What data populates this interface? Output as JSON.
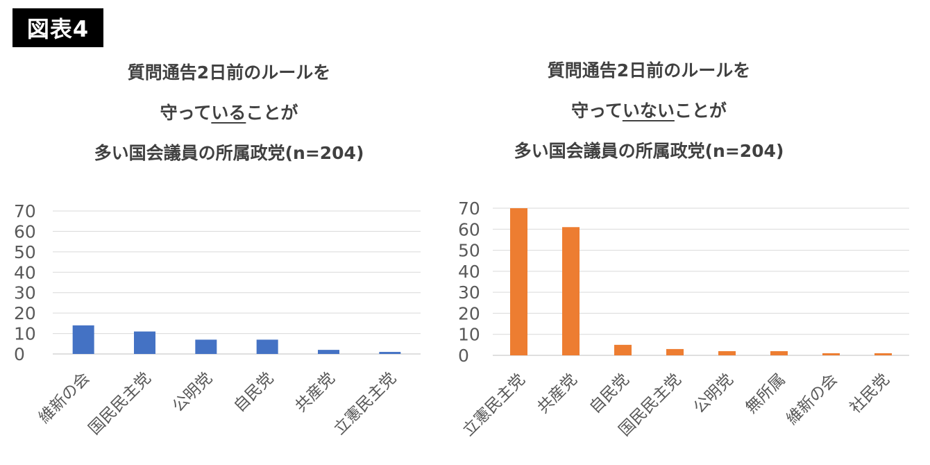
{
  "figure_label": "図表4",
  "chart_data": [
    {
      "type": "bar",
      "title_lines": [
        "質問通告2日前のルールを",
        [
          "守って",
          "いる",
          "ことが"
        ],
        "多い国会議員の所属政党(n=204)"
      ],
      "categories": [
        "維新の会",
        "国民民主党",
        "公明党",
        "自民党",
        "共産党",
        "立憲民主党"
      ],
      "values": [
        14,
        11,
        7,
        7,
        2,
        1
      ],
      "yticks": [
        0,
        10,
        20,
        30,
        40,
        50,
        60,
        70
      ],
      "ylim": [
        0,
        70
      ],
      "color": "#4472C4",
      "grid": true
    },
    {
      "type": "bar",
      "title_lines": [
        "質問通告2日前のルールを",
        [
          "守って",
          "いない",
          "ことが"
        ],
        "多い国会議員の所属政党(n=204)"
      ],
      "categories": [
        "立憲民主党",
        "共産党",
        "自民党",
        "国民民主党",
        "公明党",
        "無所属",
        "維新の会",
        "社民党"
      ],
      "values": [
        70,
        61,
        5,
        3,
        2,
        2,
        1,
        1
      ],
      "yticks": [
        0,
        10,
        20,
        30,
        40,
        50,
        60,
        70
      ],
      "ylim": [
        0,
        70
      ],
      "color": "#ED7D31",
      "grid": true
    }
  ]
}
